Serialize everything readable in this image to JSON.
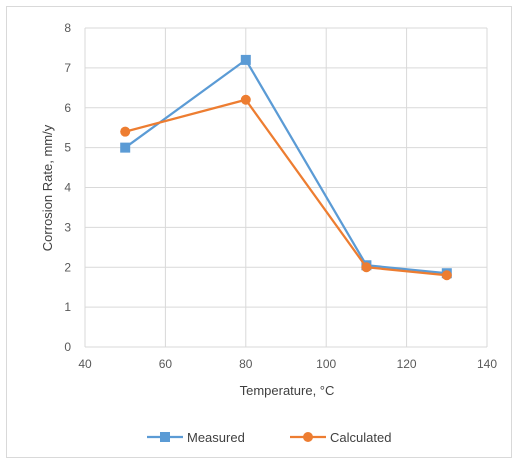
{
  "chart_data": {
    "type": "line",
    "title": "",
    "xlabel": "Temperature, °C",
    "ylabel": "Corrosion Rate, mm/y",
    "xlim": [
      40,
      140
    ],
    "ylim": [
      0,
      8
    ],
    "xticks": [
      40,
      60,
      80,
      100,
      120,
      140
    ],
    "yticks": [
      0,
      1,
      2,
      3,
      4,
      5,
      6,
      7,
      8
    ],
    "grid": true,
    "legend": "bottom",
    "series": [
      {
        "name": "Measured",
        "color": "#5b9bd5",
        "marker": "square",
        "x": [
          50,
          80,
          110,
          130
        ],
        "y": [
          5.0,
          7.2,
          2.05,
          1.85
        ]
      },
      {
        "name": "Calculated",
        "color": "#ed7d31",
        "marker": "circle",
        "x": [
          50,
          80,
          110,
          130
        ],
        "y": [
          5.4,
          6.2,
          2.0,
          1.8
        ]
      }
    ]
  }
}
